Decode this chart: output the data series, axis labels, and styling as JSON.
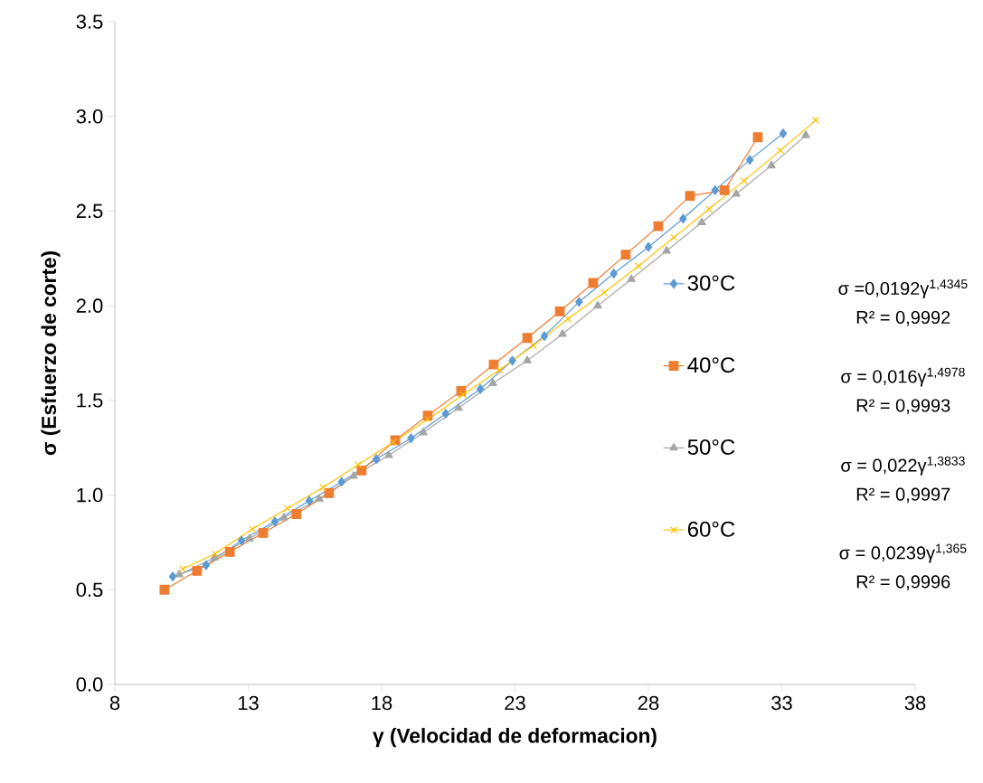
{
  "chart_data": {
    "type": "line",
    "xlabel": "γ (Velocidad de deformacion)",
    "ylabel": "σ (Esfuerzo de corte)",
    "xlim": [
      8,
      38
    ],
    "xticks": [
      8,
      13,
      18,
      23,
      28,
      33,
      38
    ],
    "ylim": [
      0,
      3.5
    ],
    "yticks": [
      {
        "value": 0,
        "label": "0.0"
      },
      {
        "value": 0.5,
        "label": "0.5"
      },
      {
        "value": 1,
        "label": "1.0"
      },
      {
        "value": 1.5,
        "label": "1.5"
      },
      {
        "value": 2,
        "label": "2.0"
      },
      {
        "value": 2.5,
        "label": "2.5"
      },
      {
        "value": 3,
        "label": "3.0"
      },
      {
        "value": 3.5,
        "label": "3.5"
      }
    ],
    "grid": false,
    "legend": "right",
    "line_style": "solid",
    "annotations": [
      "σ =0,0192γ$^{1,4345}$",
      "R² = 0,9992",
      "σ = 0,016γ$^{1,4978}$",
      "R² = 0,9993",
      "σ = 0,022γ$^{1,3833}$",
      "R² = 0,9997",
      "σ = 0,0239γ$^{1,365}$",
      "R² = 0,9996"
    ],
    "series": [
      {
        "name": "30°C",
        "color": "#5b9bd5",
        "marker": "diamond",
        "x": [
          10.17,
          11.42,
          12.75,
          14.0,
          15.29,
          16.5,
          17.8,
          19.1,
          20.4,
          21.7,
          22.9,
          24.1,
          25.4,
          26.7,
          28.0,
          29.3,
          30.5,
          31.8,
          33.05
        ],
        "values": [
          0.57,
          0.63,
          0.76,
          0.86,
          0.97,
          1.07,
          1.19,
          1.3,
          1.43,
          1.56,
          1.71,
          1.84,
          2.02,
          2.17,
          2.31,
          2.46,
          2.61,
          2.77,
          2.91
        ]
      },
      {
        "name": "40°C",
        "color": "#ed7d31",
        "marker": "square",
        "x": [
          9.86,
          11.08,
          12.31,
          13.56,
          14.81,
          16.03,
          17.25,
          18.51,
          19.73,
          20.98,
          22.2,
          23.46,
          24.68,
          25.93,
          27.15,
          28.37,
          29.56,
          30.85,
          32.1
        ],
        "values": [
          0.5,
          0.6,
          0.7,
          0.8,
          0.9,
          1.01,
          1.13,
          1.29,
          1.42,
          1.55,
          1.69,
          1.83,
          1.97,
          2.12,
          2.27,
          2.42,
          2.58,
          2.61,
          2.89
        ]
      },
      {
        "name": "50°C",
        "color": "#a5a5a5",
        "marker": "triangle",
        "x": [
          10.41,
          11.73,
          13.05,
          14.34,
          15.66,
          16.95,
          18.27,
          19.56,
          20.88,
          22.17,
          23.46,
          24.78,
          26.1,
          27.36,
          28.68,
          30.0,
          31.29,
          32.61,
          33.9
        ],
        "values": [
          0.58,
          0.67,
          0.77,
          0.88,
          0.98,
          1.1,
          1.21,
          1.33,
          1.46,
          1.59,
          1.71,
          1.85,
          2.0,
          2.14,
          2.29,
          2.44,
          2.59,
          2.74,
          2.9
        ]
      },
      {
        "name": "60°C",
        "color": "#ffc000",
        "marker": "cross",
        "x": [
          10.54,
          11.76,
          13.15,
          14.47,
          15.8,
          17.12,
          18.44,
          19.73,
          21.05,
          22.41,
          23.69,
          24.98,
          26.34,
          27.63,
          28.95,
          30.27,
          31.59,
          32.95,
          34.27
        ],
        "values": [
          0.61,
          0.69,
          0.82,
          0.93,
          1.04,
          1.16,
          1.28,
          1.4,
          1.53,
          1.66,
          1.79,
          1.93,
          2.07,
          2.21,
          2.36,
          2.51,
          2.66,
          2.82,
          2.98
        ]
      }
    ]
  }
}
